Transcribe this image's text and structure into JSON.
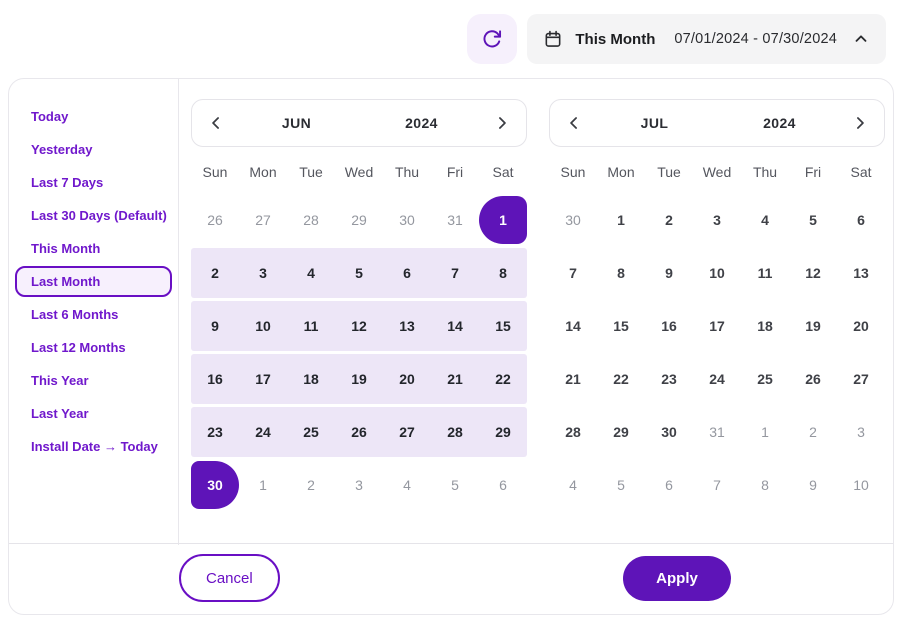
{
  "topbar": {
    "refresh_icon": "refresh-icon",
    "picker": {
      "icon": "calendar-icon",
      "label": "This Month",
      "range": "07/01/2024 - 07/30/2024",
      "chevron_icon": "chevron-up-icon"
    }
  },
  "sidebar": {
    "items": [
      {
        "label": "Today",
        "selected": false
      },
      {
        "label": "Yesterday",
        "selected": false
      },
      {
        "label": "Last 7 Days",
        "selected": false
      },
      {
        "label": "Last 30 Days (Default)",
        "selected": false
      },
      {
        "label": "This Month",
        "selected": false
      },
      {
        "label": "Last Month",
        "selected": true
      },
      {
        "label": "Last 6 Months",
        "selected": false
      },
      {
        "label": "Last 12 Months",
        "selected": false
      },
      {
        "label": "This Year",
        "selected": false
      },
      {
        "label": "Last Year",
        "selected": false
      },
      {
        "label": "Install Date → Today",
        "selected": false
      }
    ]
  },
  "calendars": [
    {
      "month": "JUN",
      "year": "2024",
      "day_headers": [
        "Sun",
        "Mon",
        "Tue",
        "Wed",
        "Thu",
        "Fri",
        "Sat"
      ],
      "weeks": [
        {
          "band": false,
          "days": [
            {
              "n": "26",
              "s": "muted"
            },
            {
              "n": "27",
              "s": "muted"
            },
            {
              "n": "28",
              "s": "muted"
            },
            {
              "n": "29",
              "s": "muted"
            },
            {
              "n": "30",
              "s": "muted"
            },
            {
              "n": "31",
              "s": "muted"
            },
            {
              "n": "1",
              "s": "start"
            }
          ]
        },
        {
          "band": true,
          "days": [
            {
              "n": "2",
              "s": "range"
            },
            {
              "n": "3",
              "s": "range"
            },
            {
              "n": "4",
              "s": "range"
            },
            {
              "n": "5",
              "s": "range"
            },
            {
              "n": "6",
              "s": "range"
            },
            {
              "n": "7",
              "s": "range"
            },
            {
              "n": "8",
              "s": "range"
            }
          ]
        },
        {
          "band": true,
          "days": [
            {
              "n": "9",
              "s": "range"
            },
            {
              "n": "10",
              "s": "range"
            },
            {
              "n": "11",
              "s": "range"
            },
            {
              "n": "12",
              "s": "range"
            },
            {
              "n": "13",
              "s": "range"
            },
            {
              "n": "14",
              "s": "range"
            },
            {
              "n": "15",
              "s": "range"
            }
          ]
        },
        {
          "band": true,
          "days": [
            {
              "n": "16",
              "s": "range"
            },
            {
              "n": "17",
              "s": "range"
            },
            {
              "n": "18",
              "s": "range"
            },
            {
              "n": "19",
              "s": "range"
            },
            {
              "n": "20",
              "s": "range"
            },
            {
              "n": "21",
              "s": "range"
            },
            {
              "n": "22",
              "s": "range"
            }
          ]
        },
        {
          "band": true,
          "days": [
            {
              "n": "23",
              "s": "range"
            },
            {
              "n": "24",
              "s": "range"
            },
            {
              "n": "25",
              "s": "range"
            },
            {
              "n": "26",
              "s": "range"
            },
            {
              "n": "27",
              "s": "range"
            },
            {
              "n": "28",
              "s": "range"
            },
            {
              "n": "29",
              "s": "range"
            }
          ]
        },
        {
          "band": false,
          "days": [
            {
              "n": "30",
              "s": "end"
            },
            {
              "n": "1",
              "s": "muted"
            },
            {
              "n": "2",
              "s": "muted"
            },
            {
              "n": "3",
              "s": "muted"
            },
            {
              "n": "4",
              "s": "muted"
            },
            {
              "n": "5",
              "s": "muted"
            },
            {
              "n": "6",
              "s": "muted"
            }
          ]
        }
      ]
    },
    {
      "month": "JUL",
      "year": "2024",
      "day_headers": [
        "Sun",
        "Mon",
        "Tue",
        "Wed",
        "Thu",
        "Fri",
        "Sat"
      ],
      "weeks": [
        {
          "band": false,
          "days": [
            {
              "n": "30",
              "s": "muted"
            },
            {
              "n": "1",
              "s": "active"
            },
            {
              "n": "2",
              "s": "active"
            },
            {
              "n": "3",
              "s": "active"
            },
            {
              "n": "4",
              "s": "active"
            },
            {
              "n": "5",
              "s": "active"
            },
            {
              "n": "6",
              "s": "active"
            }
          ]
        },
        {
          "band": false,
          "days": [
            {
              "n": "7",
              "s": "active"
            },
            {
              "n": "8",
              "s": "active"
            },
            {
              "n": "9",
              "s": "active"
            },
            {
              "n": "10",
              "s": "active"
            },
            {
              "n": "11",
              "s": "active"
            },
            {
              "n": "12",
              "s": "active"
            },
            {
              "n": "13",
              "s": "active"
            }
          ]
        },
        {
          "band": false,
          "days": [
            {
              "n": "14",
              "s": "active"
            },
            {
              "n": "15",
              "s": "active"
            },
            {
              "n": "16",
              "s": "active"
            },
            {
              "n": "17",
              "s": "active"
            },
            {
              "n": "18",
              "s": "active"
            },
            {
              "n": "19",
              "s": "active"
            },
            {
              "n": "20",
              "s": "active"
            }
          ]
        },
        {
          "band": false,
          "days": [
            {
              "n": "21",
              "s": "active"
            },
            {
              "n": "22",
              "s": "active"
            },
            {
              "n": "23",
              "s": "active"
            },
            {
              "n": "24",
              "s": "active"
            },
            {
              "n": "25",
              "s": "active"
            },
            {
              "n": "26",
              "s": "active"
            },
            {
              "n": "27",
              "s": "active"
            }
          ]
        },
        {
          "band": false,
          "days": [
            {
              "n": "28",
              "s": "active"
            },
            {
              "n": "29",
              "s": "active"
            },
            {
              "n": "30",
              "s": "active"
            },
            {
              "n": "31",
              "s": "muted"
            },
            {
              "n": "1",
              "s": "muted"
            },
            {
              "n": "2",
              "s": "muted"
            },
            {
              "n": "3",
              "s": "muted"
            }
          ]
        },
        {
          "band": false,
          "days": [
            {
              "n": "4",
              "s": "muted"
            },
            {
              "n": "5",
              "s": "muted"
            },
            {
              "n": "6",
              "s": "muted"
            },
            {
              "n": "7",
              "s": "muted"
            },
            {
              "n": "8",
              "s": "muted"
            },
            {
              "n": "9",
              "s": "muted"
            },
            {
              "n": "10",
              "s": "muted"
            }
          ]
        }
      ]
    }
  ],
  "footer": {
    "cancel": "Cancel",
    "apply": "Apply"
  },
  "colors": {
    "accent": "#5E14B8",
    "accent_text": "#7018CC",
    "range_bg": "#EDE6F7",
    "selected_item_bg": "#F7F0FD",
    "refresh_bg": "#F6F0FC",
    "picker_bg": "#F4F4F5",
    "border": "#E8E7EC",
    "muted_text": "#94979F",
    "dark_text": "#23262C"
  }
}
